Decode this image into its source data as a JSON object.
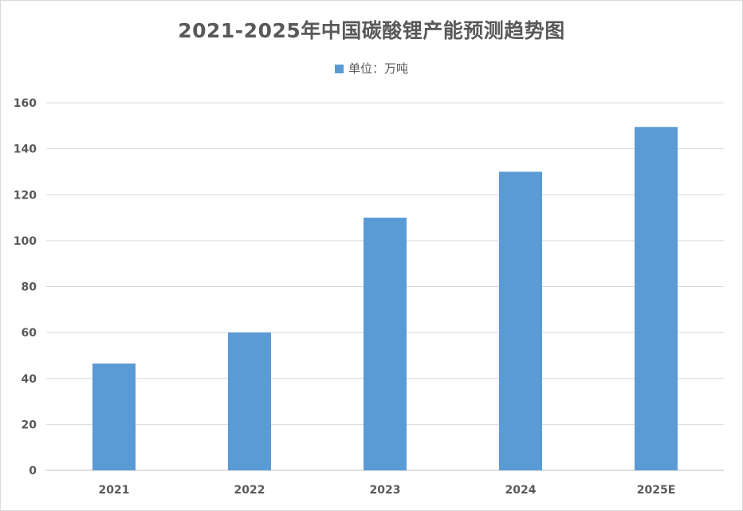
{
  "chart_data": {
    "type": "bar",
    "title": "2021-2025年中国碳酸锂产能预测趋势图",
    "categories": [
      "2021",
      "2022",
      "2023",
      "2024",
      "2025E"
    ],
    "series": [
      {
        "name": "单位：万吨",
        "values": [
          46.5,
          60,
          110,
          130,
          149.5
        ],
        "color": "#5b9bd5"
      }
    ],
    "ylim": [
      0,
      160
    ],
    "yticks": [
      0,
      20,
      40,
      60,
      80,
      100,
      120,
      140,
      160
    ],
    "xlabel": "",
    "ylabel": "",
    "grid": true,
    "legend_position": "top-center"
  }
}
